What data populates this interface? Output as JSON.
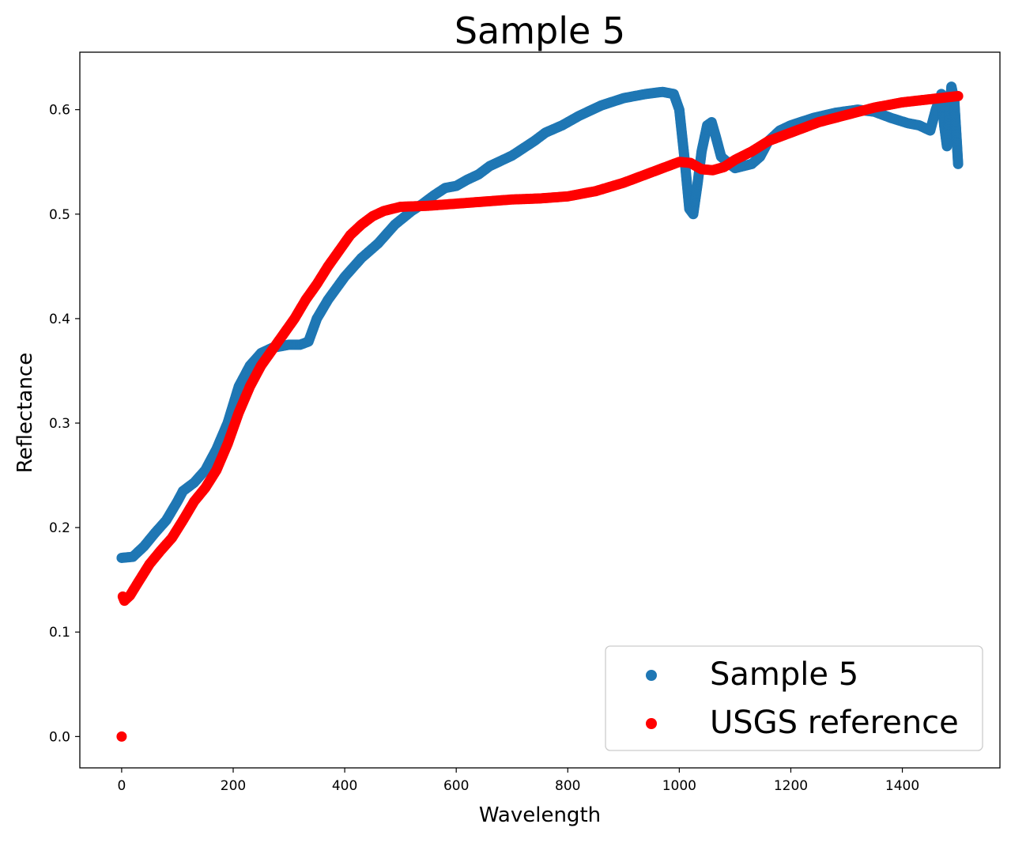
{
  "chart_data": {
    "type": "scatter",
    "title": "Sample 5",
    "xlabel": "Wavelength",
    "ylabel": "Reflectance",
    "xlim": [
      -75,
      1575
    ],
    "ylim": [
      -0.03,
      0.655
    ],
    "xticks": [
      0,
      200,
      400,
      600,
      800,
      1000,
      1200,
      1400
    ],
    "xtick_labels": [
      "0",
      "200",
      "400",
      "600",
      "800",
      "1000",
      "1200",
      "1400"
    ],
    "yticks": [
      0.0,
      0.1,
      0.2,
      0.3,
      0.4,
      0.5,
      0.6
    ],
    "ytick_labels": [
      "0.0",
      "0.1",
      "0.2",
      "0.3",
      "0.4",
      "0.5",
      "0.6"
    ],
    "grid": false,
    "legend_position": "lower-right",
    "series": [
      {
        "name": "Sample 5",
        "color": "#1f77b4",
        "points": [
          [
            0,
            0.171
          ],
          [
            20,
            0.172
          ],
          [
            40,
            0.182
          ],
          [
            60,
            0.195
          ],
          [
            80,
            0.207
          ],
          [
            100,
            0.225
          ],
          [
            110,
            0.235
          ],
          [
            130,
            0.243
          ],
          [
            150,
            0.255
          ],
          [
            170,
            0.275
          ],
          [
            190,
            0.3
          ],
          [
            210,
            0.335
          ],
          [
            230,
            0.355
          ],
          [
            250,
            0.367
          ],
          [
            270,
            0.372
          ],
          [
            300,
            0.375
          ],
          [
            320,
            0.375
          ],
          [
            335,
            0.378
          ],
          [
            350,
            0.4
          ],
          [
            370,
            0.418
          ],
          [
            400,
            0.44
          ],
          [
            430,
            0.458
          ],
          [
            460,
            0.472
          ],
          [
            490,
            0.49
          ],
          [
            520,
            0.503
          ],
          [
            540,
            0.51
          ],
          [
            560,
            0.518
          ],
          [
            580,
            0.525
          ],
          [
            600,
            0.527
          ],
          [
            620,
            0.533
          ],
          [
            640,
            0.538
          ],
          [
            660,
            0.546
          ],
          [
            700,
            0.556
          ],
          [
            740,
            0.57
          ],
          [
            760,
            0.578
          ],
          [
            790,
            0.585
          ],
          [
            820,
            0.594
          ],
          [
            860,
            0.604
          ],
          [
            900,
            0.611
          ],
          [
            940,
            0.615
          ],
          [
            970,
            0.617
          ],
          [
            990,
            0.615
          ],
          [
            1000,
            0.6
          ],
          [
            1010,
            0.55
          ],
          [
            1018,
            0.505
          ],
          [
            1025,
            0.5
          ],
          [
            1033,
            0.53
          ],
          [
            1040,
            0.56
          ],
          [
            1050,
            0.585
          ],
          [
            1058,
            0.588
          ],
          [
            1065,
            0.575
          ],
          [
            1075,
            0.555
          ],
          [
            1090,
            0.548
          ],
          [
            1100,
            0.544
          ],
          [
            1115,
            0.546
          ],
          [
            1130,
            0.548
          ],
          [
            1145,
            0.555
          ],
          [
            1160,
            0.57
          ],
          [
            1180,
            0.58
          ],
          [
            1200,
            0.585
          ],
          [
            1240,
            0.592
          ],
          [
            1280,
            0.597
          ],
          [
            1320,
            0.6
          ],
          [
            1350,
            0.598
          ],
          [
            1380,
            0.592
          ],
          [
            1410,
            0.587
          ],
          [
            1430,
            0.585
          ],
          [
            1450,
            0.58
          ],
          [
            1460,
            0.6
          ],
          [
            1470,
            0.615
          ],
          [
            1475,
            0.585
          ],
          [
            1480,
            0.565
          ],
          [
            1488,
            0.622
          ],
          [
            1493,
            0.61
          ],
          [
            1497,
            0.575
          ],
          [
            1500,
            0.548
          ]
        ]
      },
      {
        "name": "USGS reference",
        "color": "#ff0000",
        "points": [
          [
            0,
            0.0
          ],
          [
            2,
            0.134
          ],
          [
            5,
            0.13
          ],
          [
            15,
            0.135
          ],
          [
            30,
            0.148
          ],
          [
            50,
            0.165
          ],
          [
            70,
            0.178
          ],
          [
            90,
            0.19
          ],
          [
            110,
            0.207
          ],
          [
            130,
            0.225
          ],
          [
            150,
            0.238
          ],
          [
            170,
            0.255
          ],
          [
            190,
            0.28
          ],
          [
            210,
            0.31
          ],
          [
            230,
            0.335
          ],
          [
            250,
            0.355
          ],
          [
            270,
            0.37
          ],
          [
            290,
            0.385
          ],
          [
            310,
            0.4
          ],
          [
            330,
            0.418
          ],
          [
            350,
            0.433
          ],
          [
            370,
            0.45
          ],
          [
            390,
            0.465
          ],
          [
            410,
            0.48
          ],
          [
            430,
            0.49
          ],
          [
            450,
            0.498
          ],
          [
            470,
            0.503
          ],
          [
            500,
            0.507
          ],
          [
            550,
            0.508
          ],
          [
            600,
            0.51
          ],
          [
            650,
            0.512
          ],
          [
            700,
            0.514
          ],
          [
            750,
            0.515
          ],
          [
            800,
            0.517
          ],
          [
            850,
            0.522
          ],
          [
            900,
            0.53
          ],
          [
            950,
            0.54
          ],
          [
            1000,
            0.55
          ],
          [
            1020,
            0.549
          ],
          [
            1040,
            0.543
          ],
          [
            1060,
            0.542
          ],
          [
            1080,
            0.545
          ],
          [
            1100,
            0.552
          ],
          [
            1130,
            0.56
          ],
          [
            1160,
            0.57
          ],
          [
            1200,
            0.578
          ],
          [
            1250,
            0.588
          ],
          [
            1300,
            0.595
          ],
          [
            1350,
            0.602
          ],
          [
            1400,
            0.607
          ],
          [
            1450,
            0.61
          ],
          [
            1500,
            0.613
          ]
        ]
      }
    ]
  }
}
